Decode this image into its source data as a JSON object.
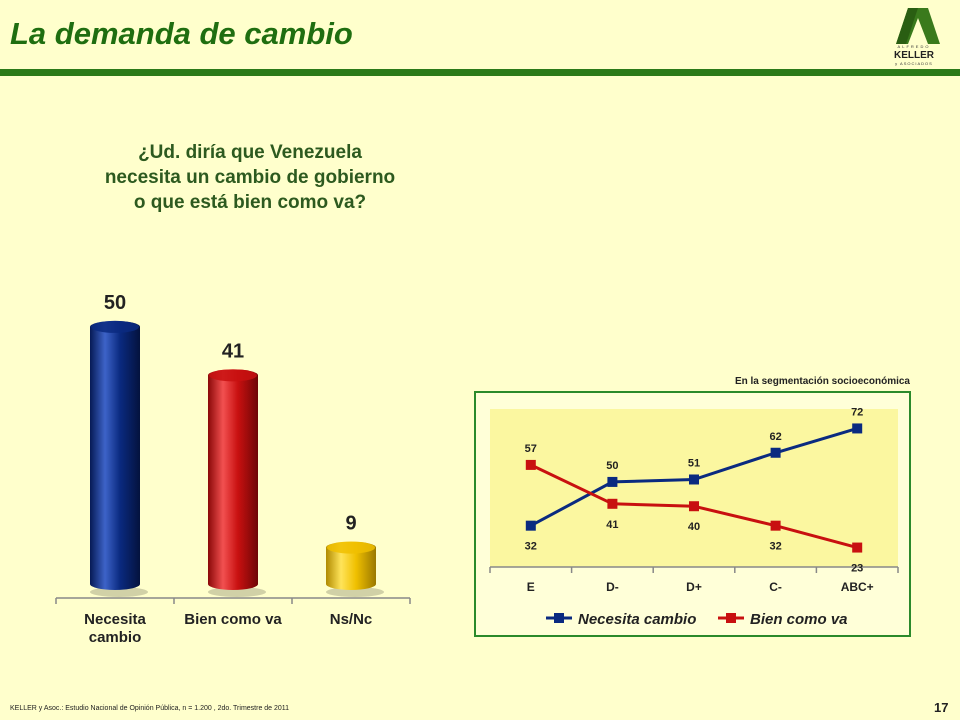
{
  "slide": {
    "title": "La demanda de cambio",
    "question": [
      "¿Ud. diría que Venezuela",
      "necesita un cambio de gobierno",
      "o que está bien como va?"
    ],
    "footer": "KELLER y Asoc.: Estudio Nacional de Opinión Pública, n = 1.200 , 2do. Trimestre de 2011",
    "page_number": "17",
    "logo": {
      "top": "ALFREDO",
      "name": "KELLER",
      "bottom": "y ASOCIADOS"
    },
    "segment_caption": "En la segmentación socioeconómica"
  },
  "colors": {
    "title": "#1f6e10",
    "rule": "#2b7a18",
    "background": "#ffffcc",
    "blue": "#0a2a80",
    "red": "#c81010",
    "yellow": "#f0c000",
    "plot_bg": "#fbf7a0"
  },
  "chart_data": [
    {
      "type": "bar",
      "categories": [
        [
          "Necesita",
          "cambio"
        ],
        [
          "Bien como va"
        ],
        [
          "Ns/Nc"
        ]
      ],
      "values": [
        50,
        41,
        9
      ],
      "colors": [
        "#0a2a80",
        "#c81010",
        "#f0c000"
      ],
      "ylim": [
        0,
        55
      ]
    },
    {
      "type": "line",
      "categories": [
        "E",
        "D-",
        "D+",
        "C-",
        "ABC+"
      ],
      "series": [
        {
          "name": "Necesita cambio",
          "color": "#0a2a80",
          "values": [
            32,
            50,
            51,
            62,
            72
          ]
        },
        {
          "name": "Bien como va",
          "color": "#c81010",
          "values": [
            57,
            41,
            40,
            32,
            23
          ]
        }
      ],
      "ylim": [
        15,
        80
      ],
      "legend": "bottom"
    }
  ]
}
